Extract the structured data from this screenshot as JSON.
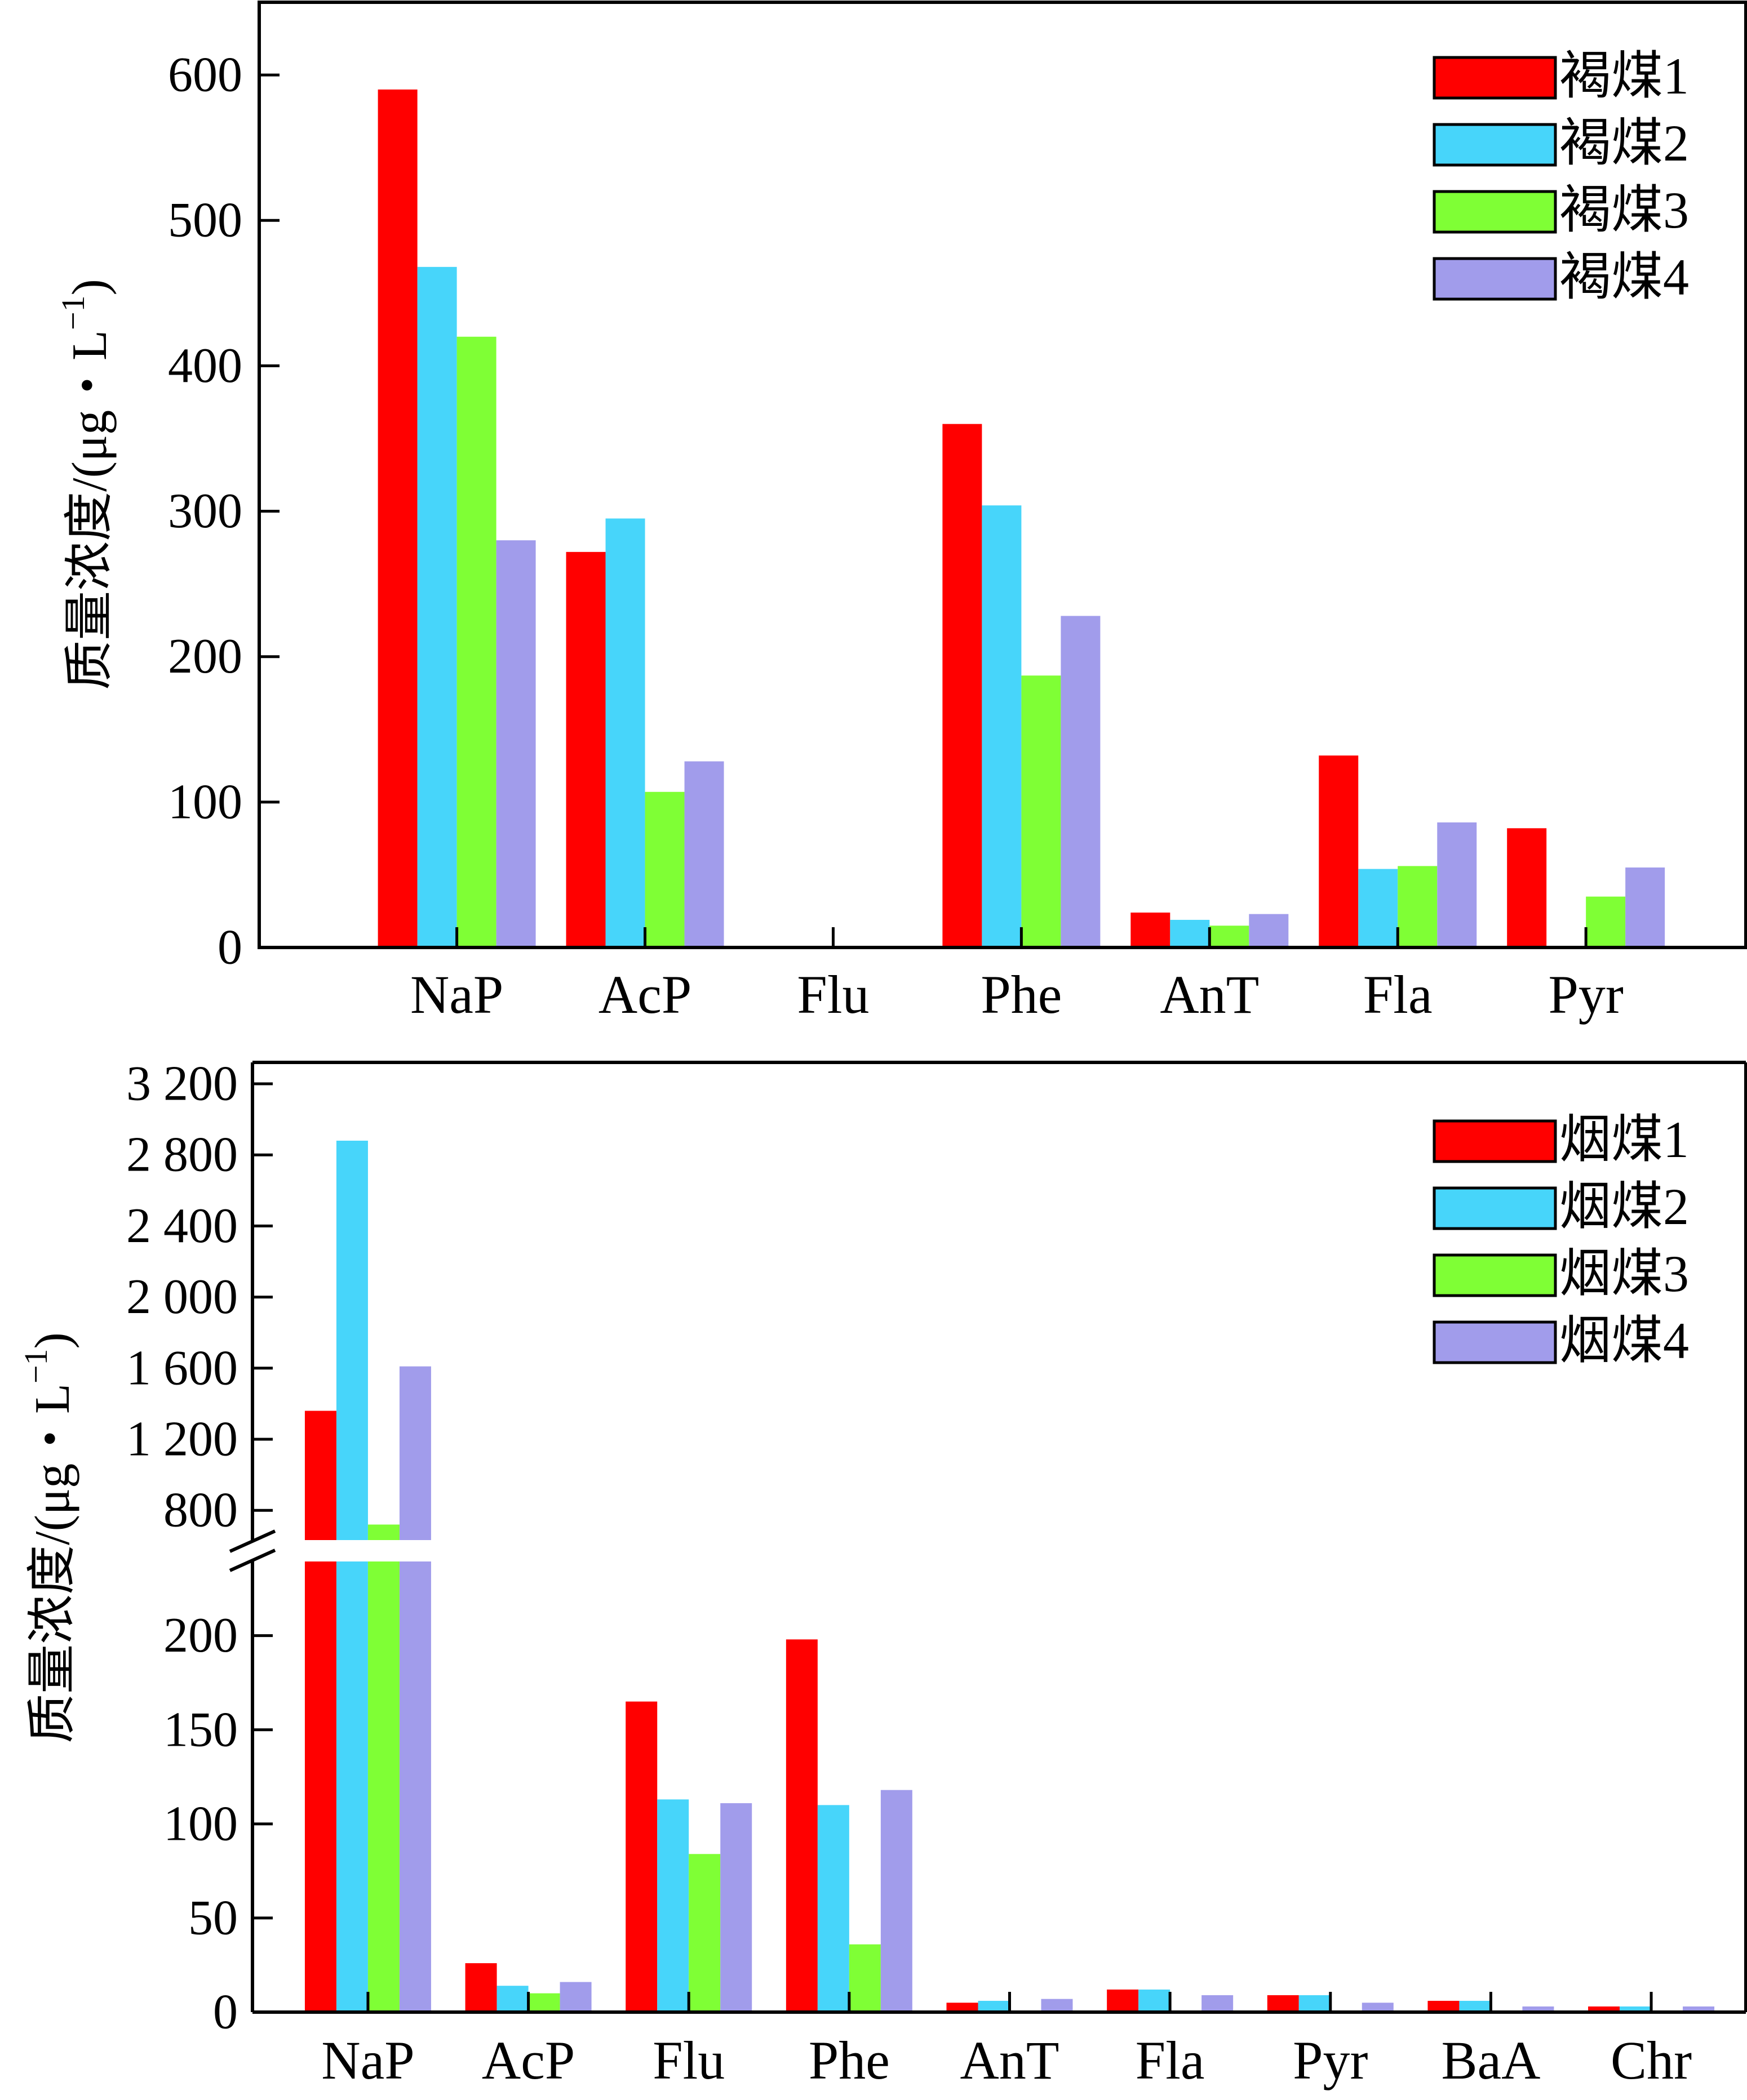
{
  "colors": {
    "series1": "#ff0000",
    "series2": "#47d5fa",
    "series3": "#7fff35",
    "series4": "#a19ceb",
    "axis": "#000000"
  },
  "chart_data": [
    {
      "type": "bar",
      "ylabel": "质量浓度/(μg・L⁻¹)",
      "categories": [
        "NaP",
        "AcP",
        "Flu",
        "Phe",
        "AnT",
        "Fla",
        "Pyr"
      ],
      "series": [
        {
          "name": "褐煤1",
          "values": [
            590,
            272,
            0,
            360,
            24,
            132,
            82
          ]
        },
        {
          "name": "褐煤2",
          "values": [
            468,
            295,
            0,
            304,
            19,
            54,
            0
          ]
        },
        {
          "name": "褐煤3",
          "values": [
            420,
            107,
            0,
            187,
            15,
            56,
            35
          ]
        },
        {
          "name": "褐煤4",
          "values": [
            280,
            128,
            0,
            228,
            23,
            86,
            55
          ]
        }
      ],
      "ylim": [
        0,
        650
      ],
      "yticks": [
        0,
        100,
        200,
        300,
        400,
        500,
        600
      ],
      "ytick_labels": [
        "0",
        "100",
        "200",
        "300",
        "400",
        "500",
        "600"
      ],
      "legend": "top-right",
      "grid": false
    },
    {
      "type": "bar",
      "ylabel": "质量浓度/(μg・L⁻¹)",
      "categories": [
        "NaP",
        "AcP",
        "Flu",
        "Phe",
        "AnT",
        "Fla",
        "Pyr",
        "BaA",
        "Chr"
      ],
      "series": [
        {
          "name": "烟煤1",
          "values": [
            1360,
            26,
            165,
            198,
            5,
            12,
            9,
            6,
            3
          ]
        },
        {
          "name": "烟煤2",
          "values": [
            2880,
            14,
            113,
            110,
            6,
            12,
            9,
            6,
            3
          ]
        },
        {
          "name": "烟煤3",
          "values": [
            720,
            10,
            84,
            36,
            0,
            0,
            0,
            0,
            0
          ]
        },
        {
          "name": "烟煤4",
          "values": [
            1610,
            16,
            111,
            118,
            7,
            9,
            5,
            3,
            3
          ]
        }
      ],
      "broken_axis": {
        "lower_range": [
          0,
          240
        ],
        "upper_range": [
          620,
          3200
        ]
      },
      "yticks": [
        0,
        50,
        100,
        150,
        200,
        800,
        1200,
        1600,
        2000,
        2400,
        2800,
        3200
      ],
      "ytick_labels": [
        "0",
        "50",
        "100",
        "150",
        "200",
        "800",
        "1 200",
        "1 600",
        "2 000",
        "2 400",
        "2 800",
        "3 200"
      ],
      "legend": "top-right",
      "grid": false
    }
  ]
}
